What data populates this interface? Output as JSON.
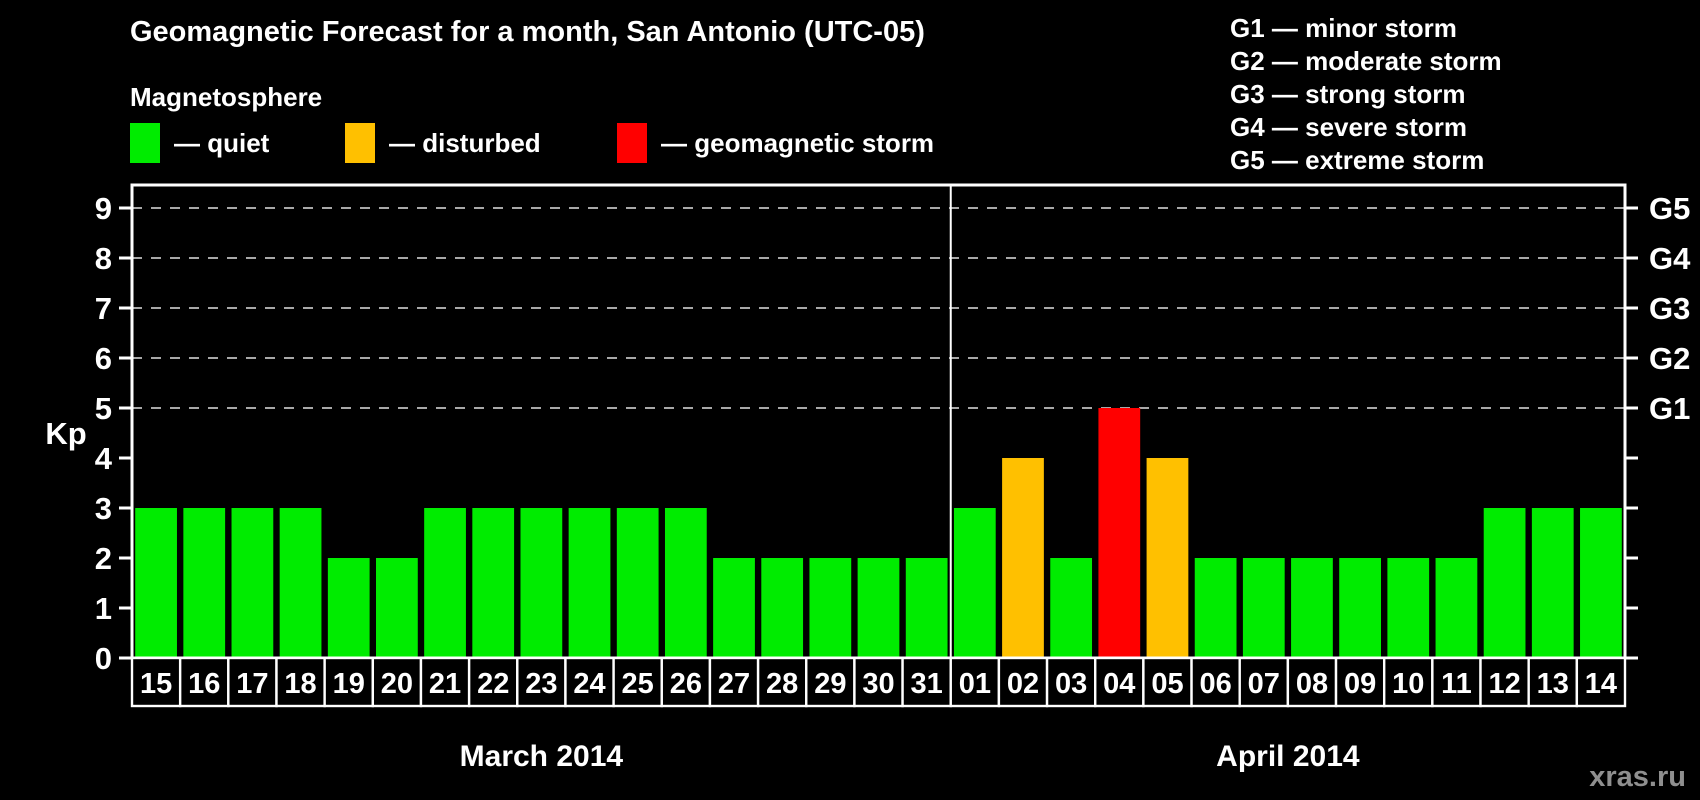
{
  "title": "Geomagnetic Forecast for a month, San Antonio (UTC-05)",
  "subtitle": "Magnetosphere",
  "legend": {
    "items": [
      {
        "key": "quiet",
        "label": "— quiet"
      },
      {
        "key": "disturbed",
        "label": "— disturbed"
      },
      {
        "key": "storm",
        "label": "— geomagnetic storm"
      }
    ]
  },
  "storm_scale_legend": [
    "G1 — minor storm",
    "G2 — moderate storm",
    "G3 — strong storm",
    "G4 — severe storm",
    "G5 — extreme storm"
  ],
  "colors": {
    "quiet": "#00ec00",
    "disturbed": "#ffc000",
    "storm": "#ff0000",
    "background": "#000000",
    "grid": "#a8a8a8",
    "axis": "#ffffff",
    "watermark": "#8f8f8f"
  },
  "watermark": "xras.ru",
  "chart_data": {
    "type": "bar",
    "title": "Geomagnetic Forecast for a month, San Antonio (UTC-05)",
    "ylabel": "Kp",
    "ylim": [
      0,
      9.4
    ],
    "yticks": [
      0,
      1,
      2,
      3,
      4,
      5,
      6,
      7,
      8,
      9
    ],
    "grid_levels": [
      5,
      6,
      7,
      8,
      9
    ],
    "grid": "dashed, only at storm levels 5-9",
    "legend_position": "top",
    "right_axis_labels": [
      {
        "kp": 5,
        "label": "G1"
      },
      {
        "kp": 6,
        "label": "G2"
      },
      {
        "kp": 7,
        "label": "G3"
      },
      {
        "kp": 8,
        "label": "G4"
      },
      {
        "kp": 9,
        "label": "G5"
      }
    ],
    "months": [
      {
        "label": "March 2014",
        "days": [
          {
            "day": "15",
            "kp": 3,
            "status": "quiet"
          },
          {
            "day": "16",
            "kp": 3,
            "status": "quiet"
          },
          {
            "day": "17",
            "kp": 3,
            "status": "quiet"
          },
          {
            "day": "18",
            "kp": 3,
            "status": "quiet"
          },
          {
            "day": "19",
            "kp": 2,
            "status": "quiet"
          },
          {
            "day": "20",
            "kp": 2,
            "status": "quiet"
          },
          {
            "day": "21",
            "kp": 3,
            "status": "quiet"
          },
          {
            "day": "22",
            "kp": 3,
            "status": "quiet"
          },
          {
            "day": "23",
            "kp": 3,
            "status": "quiet"
          },
          {
            "day": "24",
            "kp": 3,
            "status": "quiet"
          },
          {
            "day": "25",
            "kp": 3,
            "status": "quiet"
          },
          {
            "day": "26",
            "kp": 3,
            "status": "quiet"
          },
          {
            "day": "27",
            "kp": 2,
            "status": "quiet"
          },
          {
            "day": "28",
            "kp": 2,
            "status": "quiet"
          },
          {
            "day": "29",
            "kp": 2,
            "status": "quiet"
          },
          {
            "day": "30",
            "kp": 2,
            "status": "quiet"
          },
          {
            "day": "31",
            "kp": 2,
            "status": "quiet"
          }
        ]
      },
      {
        "label": "April 2014",
        "days": [
          {
            "day": "01",
            "kp": 3,
            "status": "quiet"
          },
          {
            "day": "02",
            "kp": 4,
            "status": "disturbed"
          },
          {
            "day": "03",
            "kp": 2,
            "status": "quiet"
          },
          {
            "day": "04",
            "kp": 5,
            "status": "storm"
          },
          {
            "day": "05",
            "kp": 4,
            "status": "disturbed"
          },
          {
            "day": "06",
            "kp": 2,
            "status": "quiet"
          },
          {
            "day": "07",
            "kp": 2,
            "status": "quiet"
          },
          {
            "day": "08",
            "kp": 2,
            "status": "quiet"
          },
          {
            "day": "09",
            "kp": 2,
            "status": "quiet"
          },
          {
            "day": "10",
            "kp": 2,
            "status": "quiet"
          },
          {
            "day": "11",
            "kp": 2,
            "status": "quiet"
          },
          {
            "day": "12",
            "kp": 3,
            "status": "quiet"
          },
          {
            "day": "13",
            "kp": 3,
            "status": "quiet"
          },
          {
            "day": "14",
            "kp": 3,
            "status": "quiet"
          }
        ]
      }
    ]
  }
}
